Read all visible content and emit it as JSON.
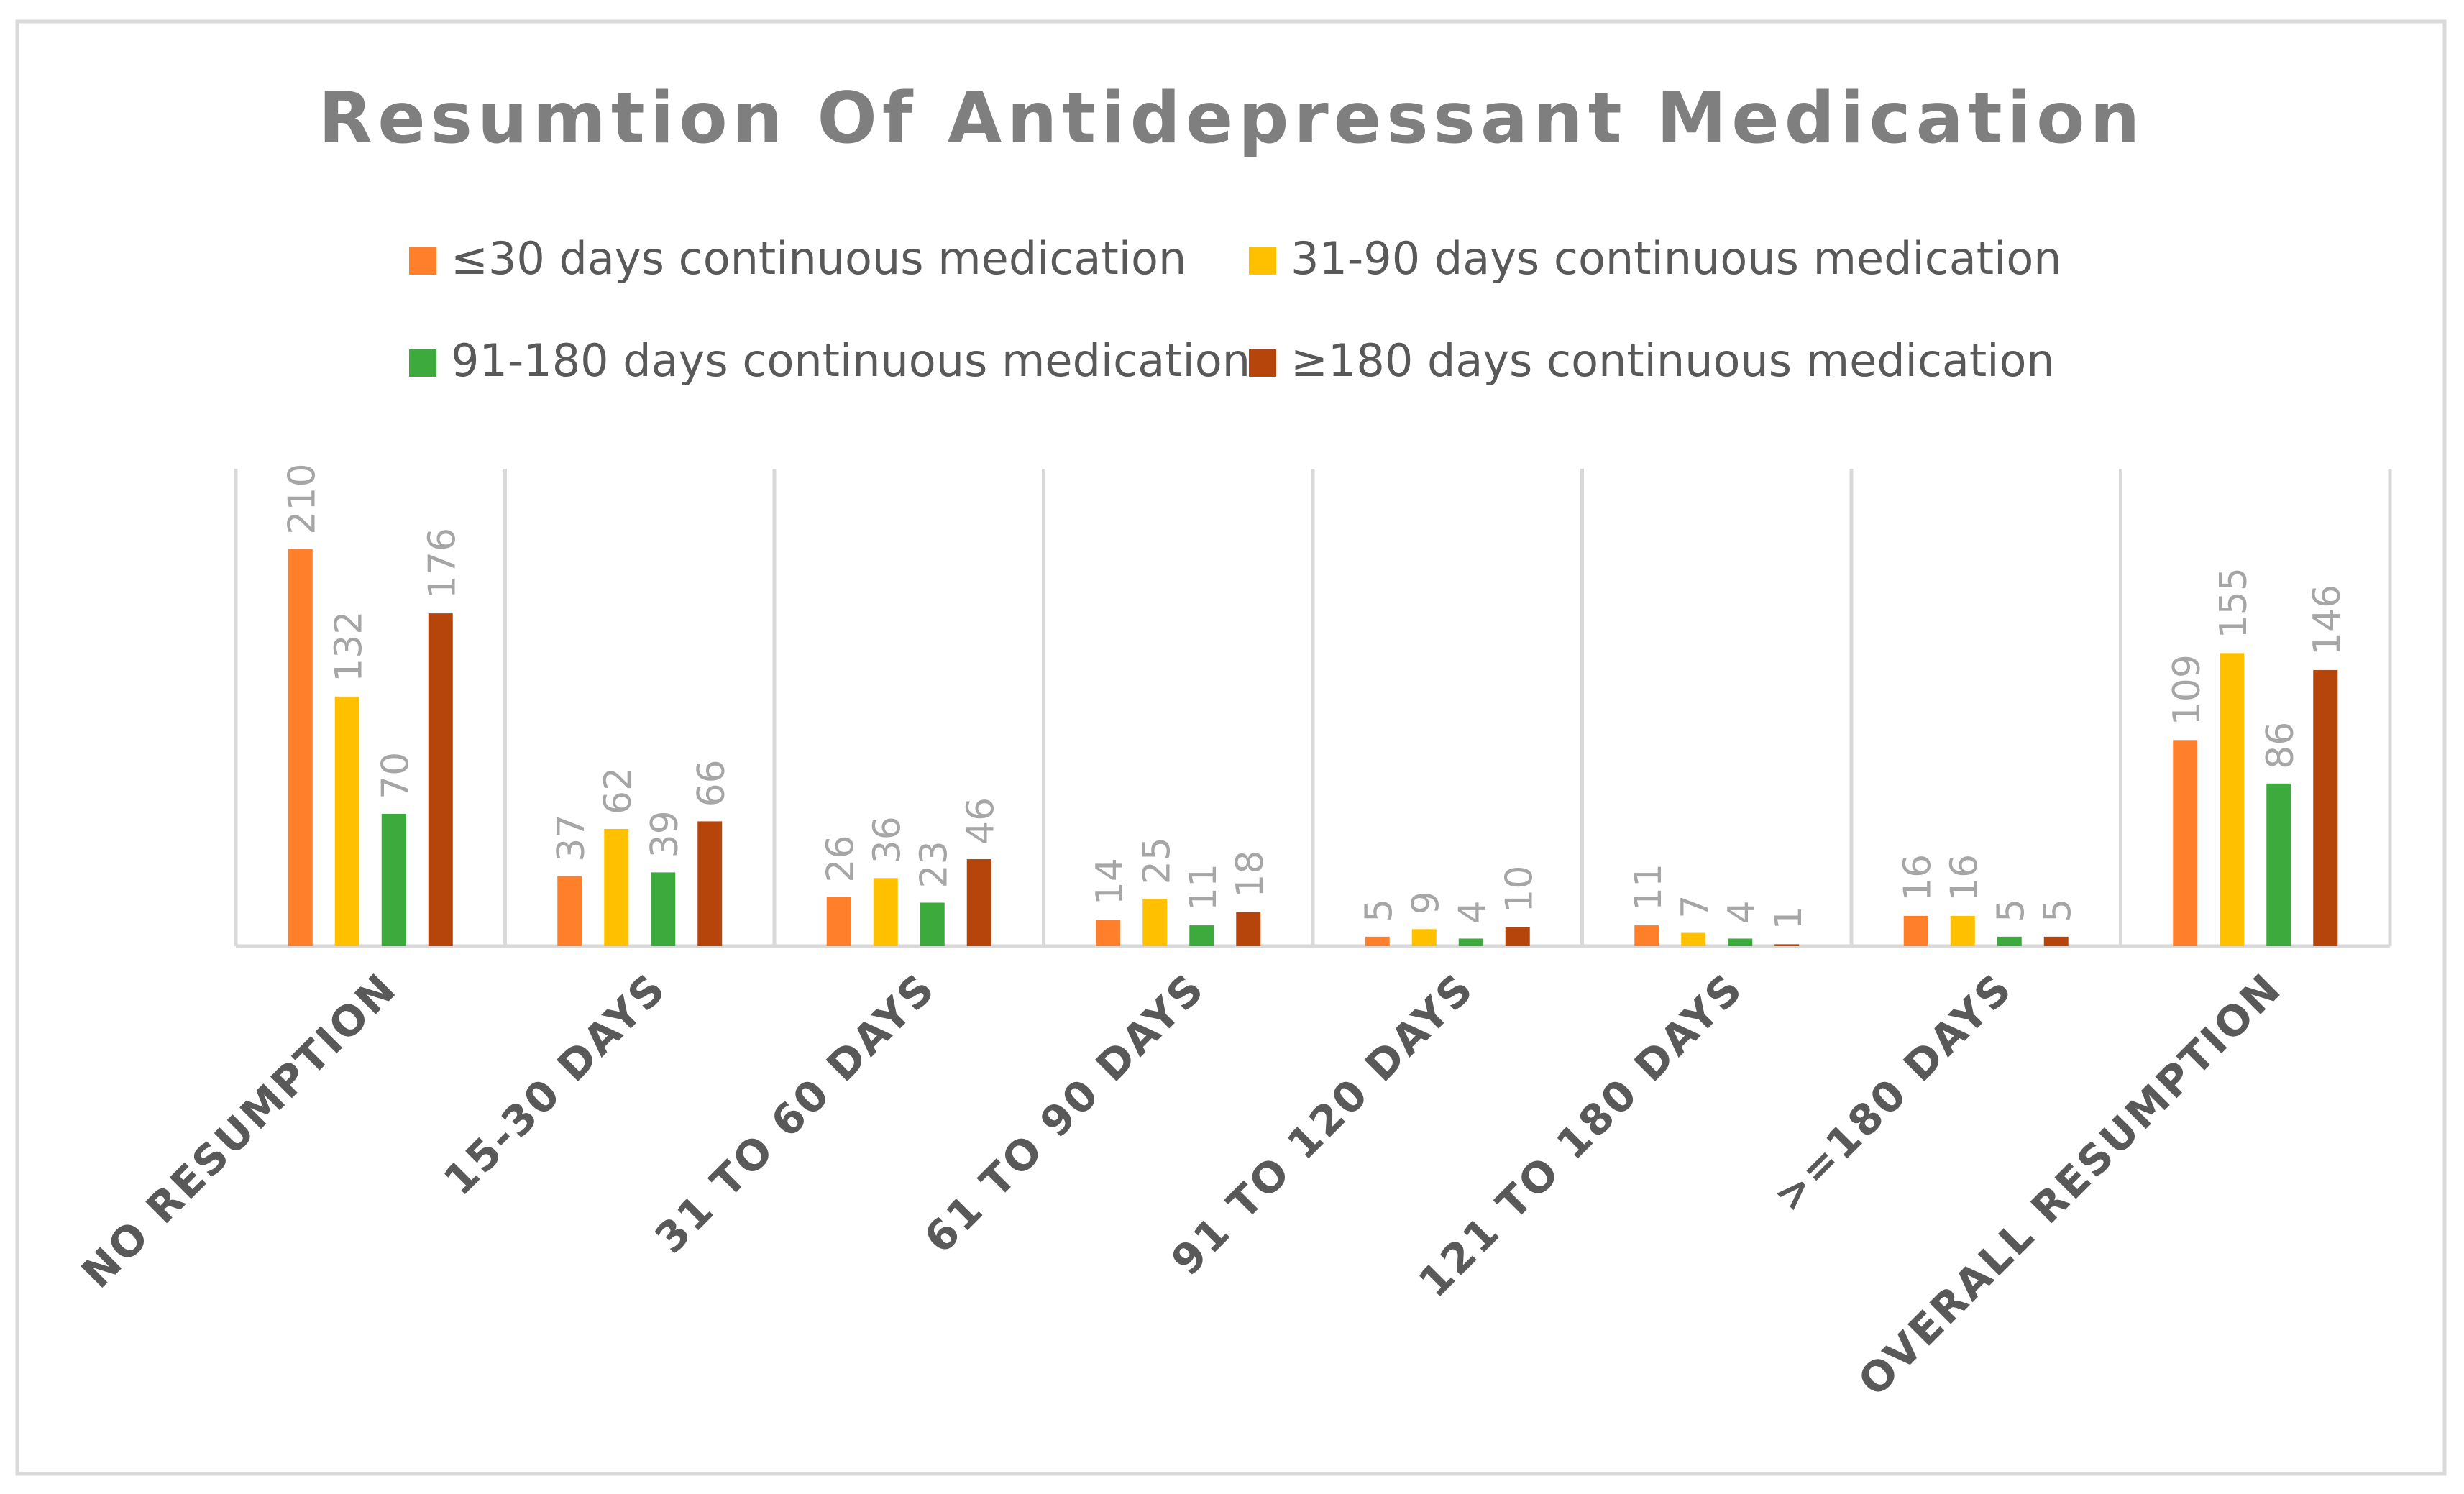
{
  "chart_data": {
    "type": "bar",
    "title": "Resumtion Of Antidepressant Medication",
    "xlabel": "",
    "ylabel": "",
    "ylim": [
      0,
      250
    ],
    "grid": "vertical separators between categories",
    "legend_position": "top",
    "categories": [
      "NO RESUMPTION",
      "15-30 DAYS",
      "31 TO 60 DAYS",
      "61 TO 90 DAYS",
      "91 TO 120 DAYS",
      "121 TO 180 DAYS",
      ">=180 DAYS",
      "OVERALL RESUMPTION"
    ],
    "series": [
      {
        "name": "≤30 days continuous medication",
        "color": "#FF7F2A",
        "values": [
          210,
          37,
          26,
          14,
          5,
          11,
          16,
          109
        ]
      },
      {
        "name": "31-90 days continuous medication",
        "color": "#FFC000",
        "values": [
          132,
          62,
          36,
          25,
          9,
          7,
          16,
          155
        ]
      },
      {
        "name": "91-180 days continuous medication",
        "color": "#3DAA3D",
        "values": [
          70,
          39,
          23,
          11,
          4,
          4,
          5,
          86
        ]
      },
      {
        "name": "≥180 days continuous medication",
        "color": "#B5450B",
        "values": [
          176,
          66,
          46,
          18,
          10,
          1,
          5,
          146
        ]
      }
    ]
  },
  "colors": {
    "title": "#7f7f7f",
    "text": "#595959",
    "data_label": "#a6a6a6",
    "grid": "#d9d9d9",
    "border": "#d9d9d9"
  }
}
